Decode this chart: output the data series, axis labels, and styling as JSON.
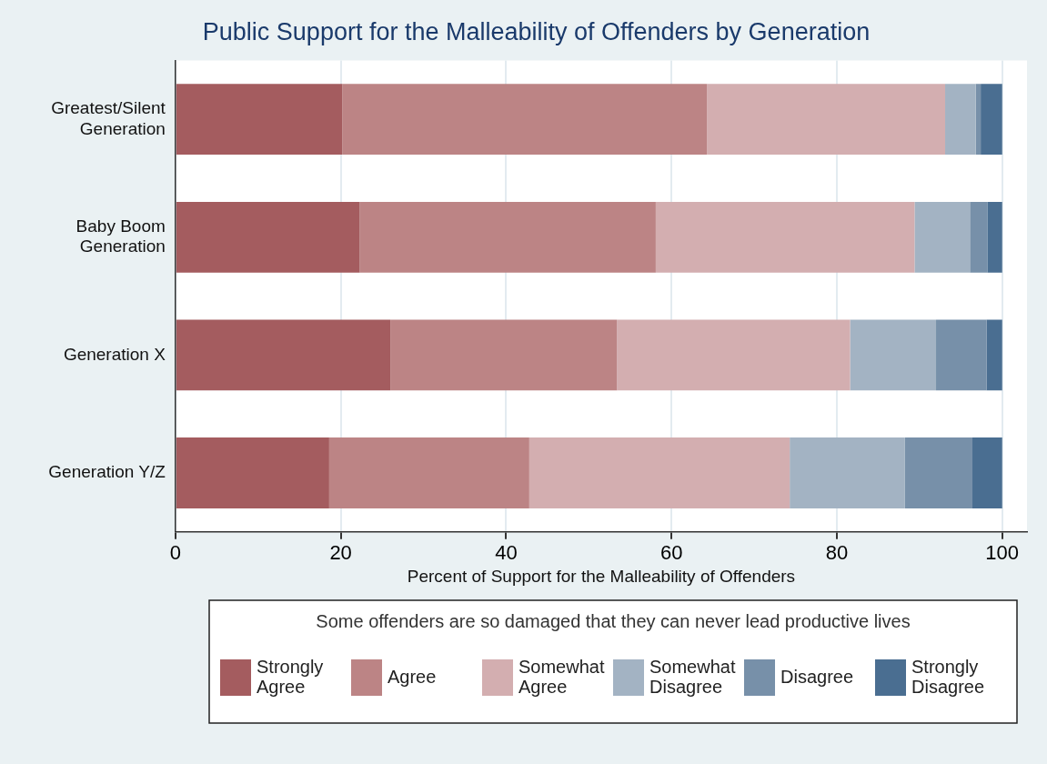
{
  "chart_data": {
    "type": "bar",
    "orientation": "horizontal",
    "stacked": true,
    "title": "Public Support for the Malleability of Offenders by Generation",
    "xlabel": "Percent of Support for the Malleability of Offenders",
    "legend_title": "Some offenders are so damaged that they can never lead productive lives",
    "legend": "bottom",
    "grid": "x",
    "categories": [
      "Greatest/Silent Generation",
      "Baby Boom Generation",
      "Generation X",
      "Generation Y/Z"
    ],
    "xlim": [
      0,
      103
    ],
    "xticks": [
      0,
      20,
      40,
      60,
      80,
      100
    ],
    "series": [
      {
        "name": "Strongly Agree",
        "color": "#a45c5f",
        "values": [
          20.2,
          22.3,
          26.0,
          18.6
        ]
      },
      {
        "name": "Agree",
        "color": "#bc8485",
        "values": [
          44.1,
          35.8,
          27.4,
          24.2
        ]
      },
      {
        "name": "Somewhat Agree",
        "color": "#d3aeb0",
        "values": [
          28.8,
          31.3,
          28.2,
          31.5
        ]
      },
      {
        "name": "Somewhat Disagree",
        "color": "#a3b3c3",
        "values": [
          3.7,
          6.7,
          10.4,
          13.9
        ]
      },
      {
        "name": "Disagree",
        "color": "#7790a9",
        "values": [
          0.6,
          2.1,
          6.1,
          8.2
        ]
      },
      {
        "name": "Strongly Disagree",
        "color": "#4a6e91",
        "values": [
          2.6,
          1.8,
          1.9,
          3.6
        ]
      }
    ]
  }
}
